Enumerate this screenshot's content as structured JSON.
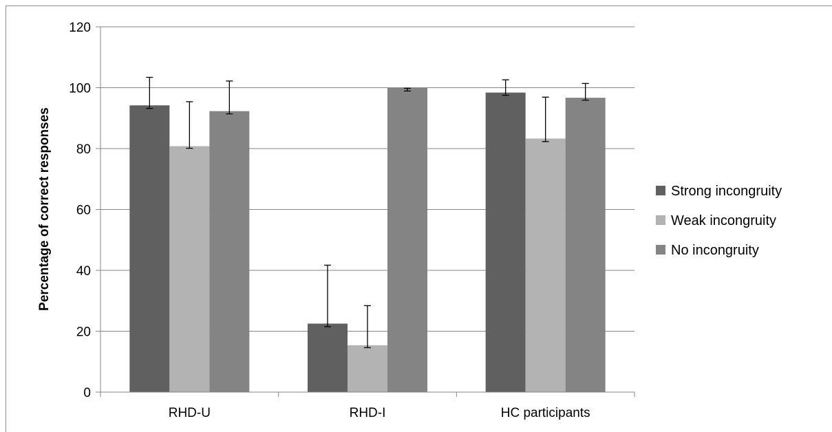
{
  "chart_data": {
    "type": "bar",
    "title": "",
    "xlabel": "",
    "ylabel": "Percentage of correct responses",
    "ylim": [
      0,
      120
    ],
    "yticks": [
      0,
      20,
      40,
      60,
      80,
      100,
      120
    ],
    "grid": true,
    "legend_position": "right",
    "categories": [
      "RHD-U",
      "RHD-I",
      "HC participants"
    ],
    "series": [
      {
        "name": "Strong incongruity",
        "color": "#606060",
        "values": [
          94.2,
          22.5,
          98.4
        ],
        "error_low": [
          93.2,
          21.5,
          97.5
        ],
        "error_high": [
          103.4,
          41.7,
          102.6
        ]
      },
      {
        "name": "Weak incongruity",
        "color": "#b3b3b3",
        "values": [
          80.8,
          15.4,
          83.3
        ],
        "error_low": [
          80.1,
          14.6,
          82.3
        ],
        "error_high": [
          95.4,
          28.4,
          96.9
        ]
      },
      {
        "name": "No incongruity",
        "color": "#848484",
        "values": [
          92.3,
          100,
          96.7
        ],
        "error_low": [
          91.4,
          98.9,
          95.9
        ],
        "error_high": [
          102.2,
          99.8,
          101.4
        ]
      }
    ]
  }
}
